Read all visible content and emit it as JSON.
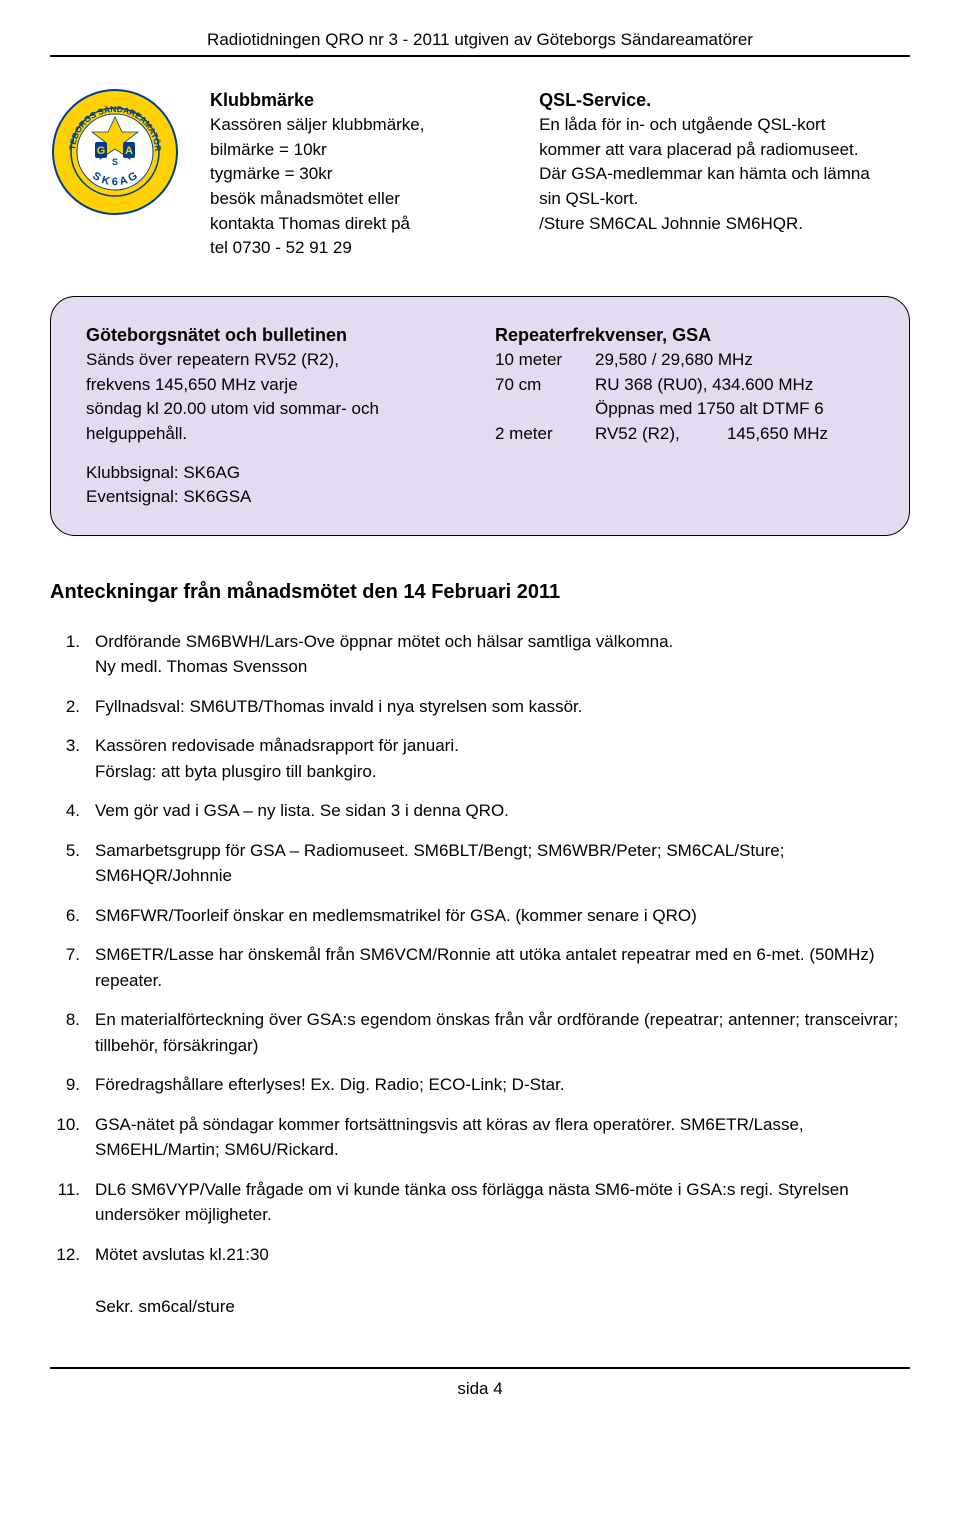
{
  "header": "Radiotidningen QRO nr 3 - 2011 utgiven av Göteborgs Sändareamatörer",
  "klubb": {
    "title": "Klubbmärke",
    "line1": "Kassören säljer klubbmärke,",
    "line2": "bilmärke = 10kr",
    "line3": "tygmärke = 30kr",
    "line4": "besök månadsmötet eller",
    "line5": "kontakta Thomas direkt på",
    "line6": "tel 0730 - 52 91 29"
  },
  "qsl": {
    "title": "QSL-Service.",
    "line1": "En låda för in- och utgående  QSL-kort",
    "line2": "kommer att vara placerad på radiomuseet.",
    "line3": "Där GSA-medlemmar kan hämta och lämna",
    "line4": "sin  QSL-kort.",
    "line5": "/Sture SM6CAL   Johnnie  SM6HQR."
  },
  "goteborgsnatet": {
    "title": "Göteborgsnätet och  bulletinen",
    "line1": "Sänds över repeatern RV52 (R2),",
    "line2": "frekvens 145,650 MHz varje",
    "line3": "söndag kl 20.00 utom vid sommar- och",
    "line4": "helguppehåll.",
    "line5": "Klubbsignal: SK6AG",
    "line6": "Eventsignal: SK6GSA"
  },
  "repeater": {
    "title": "Repeaterfrekvenser, GSA",
    "r1_label": "10 meter",
    "r1_val": "29,580 / 29,680 MHz",
    "r2_label": "70 cm",
    "r2_val": "RU 368 (RU0), 434.600 MHz",
    "r3_label": "",
    "r3_val": "Öppnas med 1750 alt DTMF 6",
    "r4_label": "2 meter",
    "r4_val": "RV52 (R2),          145,650 MHz"
  },
  "main_heading": "Anteckningar från månadsmötet den 14 Februari 2011",
  "notes": [
    {
      "n": "1.",
      "t": "Ordförande SM6BWH/Lars-Ove öppnar mötet och hälsar samtliga välkomna.\nNy medl. Thomas Svensson"
    },
    {
      "n": "2.",
      "t": "Fyllnadsval: SM6UTB/Thomas invald i nya styrelsen som kassör."
    },
    {
      "n": "3.",
      "t": "Kassören redovisade månadsrapport för januari.\nFörslag: att byta plusgiro till bankgiro."
    },
    {
      "n": "4.",
      "t": "Vem gör vad i GSA – ny lista. Se sidan 3 i denna QRO."
    },
    {
      "n": "5.",
      "t": "Samarbetsgrupp för GSA – Radiomuseet. SM6BLT/Bengt; SM6WBR/Peter; SM6CAL/Sture; SM6HQR/Johnnie"
    },
    {
      "n": "6.",
      "t": "SM6FWR/Toorleif önskar en medlemsmatrikel för GSA. (kommer senare i QRO)"
    },
    {
      "n": "7.",
      "t": "SM6ETR/Lasse har önskemål från SM6VCM/Ronnie att utöka antalet repeatrar med en 6-met. (50MHz)  repeater."
    },
    {
      "n": "8.",
      "t": "En materialförteckning över GSA:s egendom önskas från vår ordförande (repeatrar; antenner; transceivrar; tillbehör, försäkringar)"
    },
    {
      "n": "9.",
      "t": "Föredragshållare efterlyses! Ex. Dig. Radio; ECO-Link; D-Star."
    },
    {
      "n": "10.",
      "t": "GSA-nätet på söndagar kommer fortsättningsvis att köras av flera operatörer. SM6ETR/Lasse, SM6EHL/Martin; SM6U/Rickard."
    },
    {
      "n": "11.",
      "t": "DL6 SM6VYP/Valle frågade om vi kunde tänka oss förlägga nästa SM6-möte i GSA:s regi. Styrelsen undersöker möjligheter."
    },
    {
      "n": "12.",
      "t": "Mötet avslutas kl.21:30"
    }
  ],
  "signature": "Sekr. sm6cal/sture",
  "footer": "sida 4",
  "logo": {
    "outer": "#ffd200",
    "inner": "#003d8f",
    "text": "#003d8f",
    "label_top": "GÖTEBORGS SÄNDAREAMATÖRER",
    "label_bottom": "SK6AG",
    "center": "G SA"
  }
}
